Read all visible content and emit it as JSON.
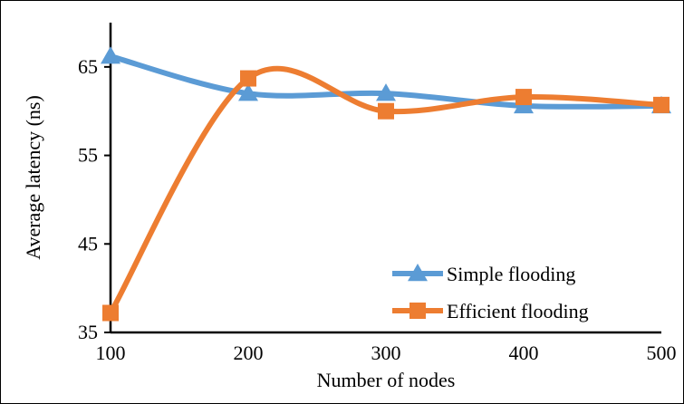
{
  "chart_data": {
    "type": "line",
    "title": "",
    "xlabel": "Number of nodes",
    "ylabel": "Average latency (ns)",
    "x": [
      100,
      200,
      300,
      400,
      500
    ],
    "xlim": [
      100,
      500
    ],
    "ylim": [
      35,
      70
    ],
    "yticks": [
      35,
      45,
      55,
      65
    ],
    "grid": false,
    "smooth": true,
    "legend_position": "bottom-right",
    "series": [
      {
        "name": "Simple flooding",
        "values": [
          66.2,
          62.0,
          62.0,
          60.6,
          60.6
        ],
        "color": "#5b9bd5",
        "marker": "triangle"
      },
      {
        "name": "Efficient flooding",
        "values": [
          37.2,
          63.7,
          60.0,
          61.6,
          60.7
        ],
        "color": "#ed7d31",
        "marker": "square"
      }
    ]
  }
}
